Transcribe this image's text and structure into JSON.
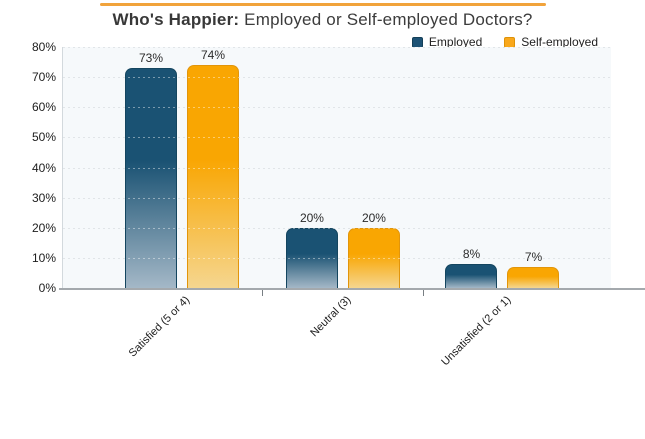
{
  "header": {
    "title_bold": "Who's Happier:",
    "title_rest": " Employed or Self-employed Doctors?",
    "accent_color": "#F1A33B"
  },
  "legend": {
    "items": [
      {
        "label": "Employed",
        "color": "#1D5275",
        "border": "#143F58"
      },
      {
        "label": "Self-employed",
        "color": "#F9A81C",
        "border": "#DE9208"
      }
    ]
  },
  "chart_data": {
    "type": "bar",
    "title": "Who's Happier: Employed or Self-employed Doctors?",
    "categories": [
      "Satisfied (5 or 4)",
      "Neutral (3)",
      "Unsatisfied (2 or 1)"
    ],
    "series": [
      {
        "name": "Employed",
        "values": [
          73,
          20,
          8
        ],
        "color_top": "#1A5273",
        "color_bottom": "#A4B8C7",
        "border_color": "#14455F"
      },
      {
        "name": "Self-employed",
        "values": [
          74,
          20,
          7
        ],
        "color_top": "#F9A602",
        "color_bottom": "#F5D68F",
        "border_color": "#E2950A"
      }
    ],
    "value_suffix": "%",
    "ylim": [
      0,
      80
    ],
    "ytick_step": 10,
    "ytick_labels": [
      "0%",
      "10%",
      "20%",
      "30%",
      "40%",
      "50%",
      "60%",
      "70%",
      "80%"
    ],
    "grid": "dotted horizontal",
    "legend_position": "top-right",
    "xlabel": "",
    "ylabel": ""
  }
}
